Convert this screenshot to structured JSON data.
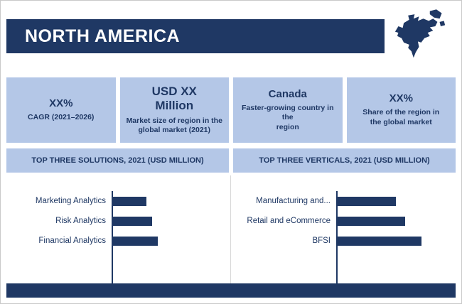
{
  "colors": {
    "navy": "#1F3864",
    "light_blue": "#B4C7E7",
    "background": "#FFFFFF",
    "frame_border": "#C9C9C9"
  },
  "header": {
    "title": "NORTH AMERICA",
    "map_icon": "north-america-map"
  },
  "cards": [
    {
      "headline": "XX%",
      "sub": "CAGR (2021–2026)"
    },
    {
      "headline": "USD XX\nMillion",
      "sub": "Market size of region in the\nglobal market (2021)"
    },
    {
      "headline": "Canada",
      "sub": "Faster-growing country in the\nregion"
    },
    {
      "headline": "XX%",
      "sub": "Share of the region in\nthe global market"
    }
  ],
  "chart_data": [
    {
      "type": "bar",
      "orientation": "horizontal",
      "title": "TOP THREE SOLUTIONS, 2021 (USD MILLION)",
      "categories": [
        "Marketing Analytics",
        "Risk Analytics",
        "Financial Analytics"
      ],
      "values": [
        47,
        55,
        63
      ],
      "value_note": "actual values not shown (XX placeholders); values are relative bar lengths in px",
      "bar_color": "#1F3864",
      "axis": "left vertical baseline, no ticks, no gridlines"
    },
    {
      "type": "bar",
      "orientation": "horizontal",
      "title": "TOP THREE VERTICALS, 2021 (USD MILLION)",
      "categories": [
        "Manufacturing and...",
        "Retail and eCommerce",
        "BFSI"
      ],
      "values": [
        82,
        95,
        118
      ],
      "value_note": "actual values not shown (XX placeholders); values are relative bar lengths in px",
      "bar_color": "#1F3864",
      "axis": "left vertical baseline, no ticks, no gridlines"
    }
  ]
}
